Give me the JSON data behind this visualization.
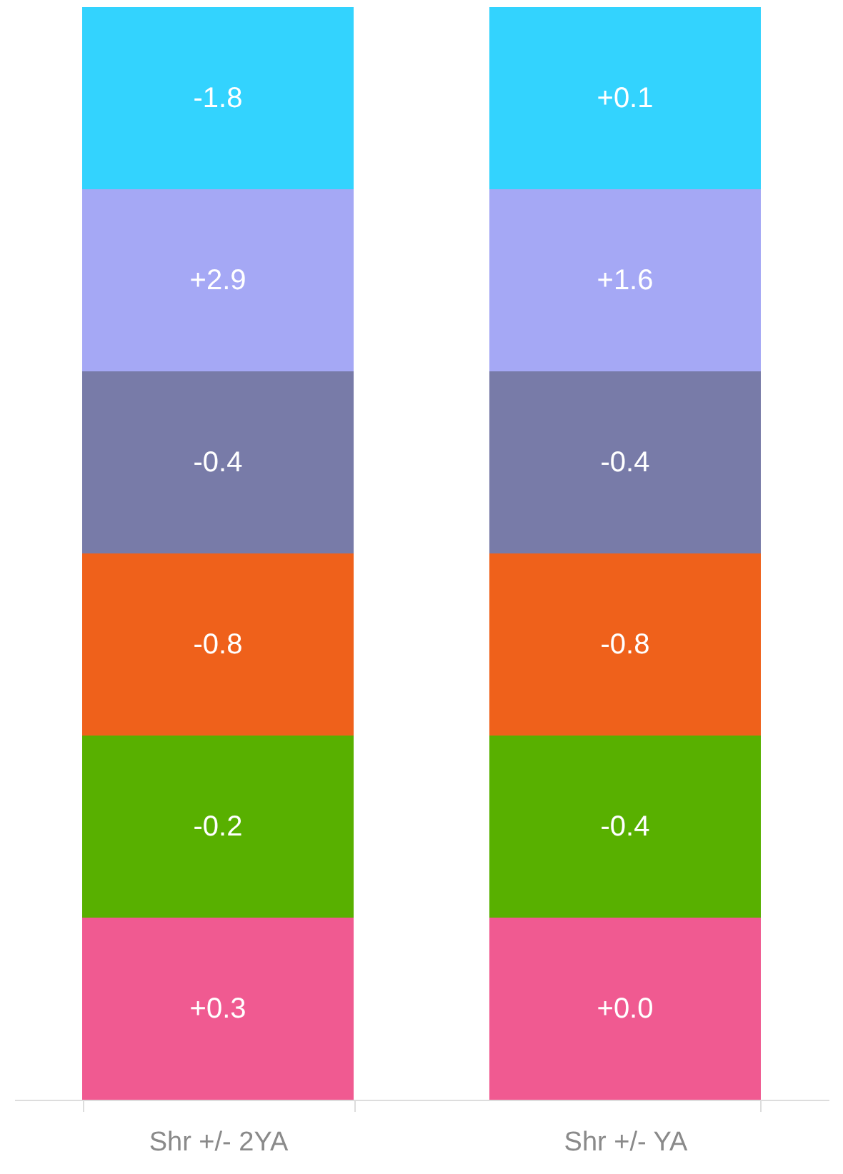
{
  "chart_data": {
    "type": "heatmap",
    "categories": [
      "Shr +/- 2YA",
      "Shr +/- YA"
    ],
    "y_categories": [
      null,
      null,
      null,
      null,
      null,
      null
    ],
    "colors": [
      "#33d3fe",
      "#a5a8f5",
      "#787ba8",
      "#ef611b",
      "#58b000",
      "#f05a91"
    ],
    "cells": [
      [
        -1.8,
        0.1
      ],
      [
        2.9,
        1.6
      ],
      [
        -0.4,
        -0.4
      ],
      [
        -0.8,
        -0.8
      ],
      [
        -0.2,
        -0.4
      ],
      [
        0.3,
        0.0
      ]
    ],
    "cell_labels": [
      [
        "-1.8",
        "+0.1"
      ],
      [
        "+2.9",
        "+1.6"
      ],
      [
        "-0.4",
        "-0.4"
      ],
      [
        "-0.8",
        "-0.8"
      ],
      [
        "-0.2",
        "-0.4"
      ],
      [
        "+0.3",
        "+0.0"
      ]
    ]
  }
}
